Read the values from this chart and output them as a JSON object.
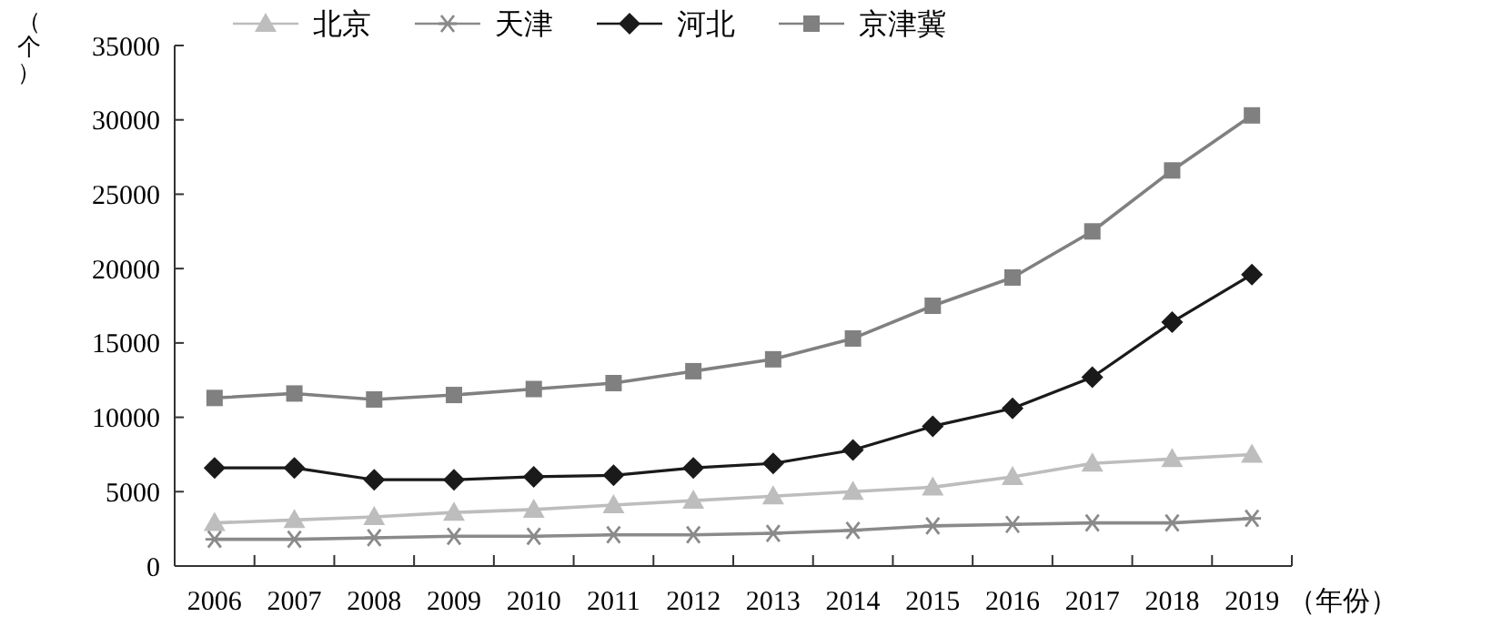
{
  "chart_data": {
    "type": "line",
    "ylabel": "（个）",
    "xlabel": "（年份）",
    "categories": [
      "2006",
      "2007",
      "2008",
      "2009",
      "2010",
      "2011",
      "2012",
      "2013",
      "2014",
      "2015",
      "2016",
      "2017",
      "2018",
      "2019"
    ],
    "series": [
      {
        "name": "北京",
        "color": "#bdbdbd",
        "marker": "triangle",
        "values": [
          2900,
          3100,
          3300,
          3600,
          3800,
          4100,
          4400,
          4700,
          5000,
          5300,
          6000,
          6900,
          7200,
          7500
        ]
      },
      {
        "name": "天津",
        "color": "#8a8a8a",
        "marker": "cross",
        "values": [
          1800,
          1800,
          1900,
          2000,
          2000,
          2100,
          2100,
          2200,
          2400,
          2700,
          2800,
          2900,
          2900,
          3200
        ]
      },
      {
        "name": "河北",
        "color": "#1a1a1a",
        "marker": "diamond",
        "values": [
          6600,
          6600,
          5800,
          5800,
          6000,
          6100,
          6600,
          6900,
          7800,
          9400,
          10600,
          12700,
          16400,
          19600
        ]
      },
      {
        "name": "京津冀",
        "color": "#808080",
        "marker": "square",
        "values": [
          11300,
          11600,
          11200,
          11500,
          11900,
          12300,
          13100,
          13900,
          15300,
          17500,
          19400,
          22500,
          26600,
          30300
        ]
      }
    ],
    "ylim": [
      0,
      35000
    ],
    "yticks": [
      0,
      5000,
      10000,
      15000,
      20000,
      25000,
      30000,
      35000
    ],
    "legend": "top",
    "grid": false,
    "line_style": "solid"
  }
}
